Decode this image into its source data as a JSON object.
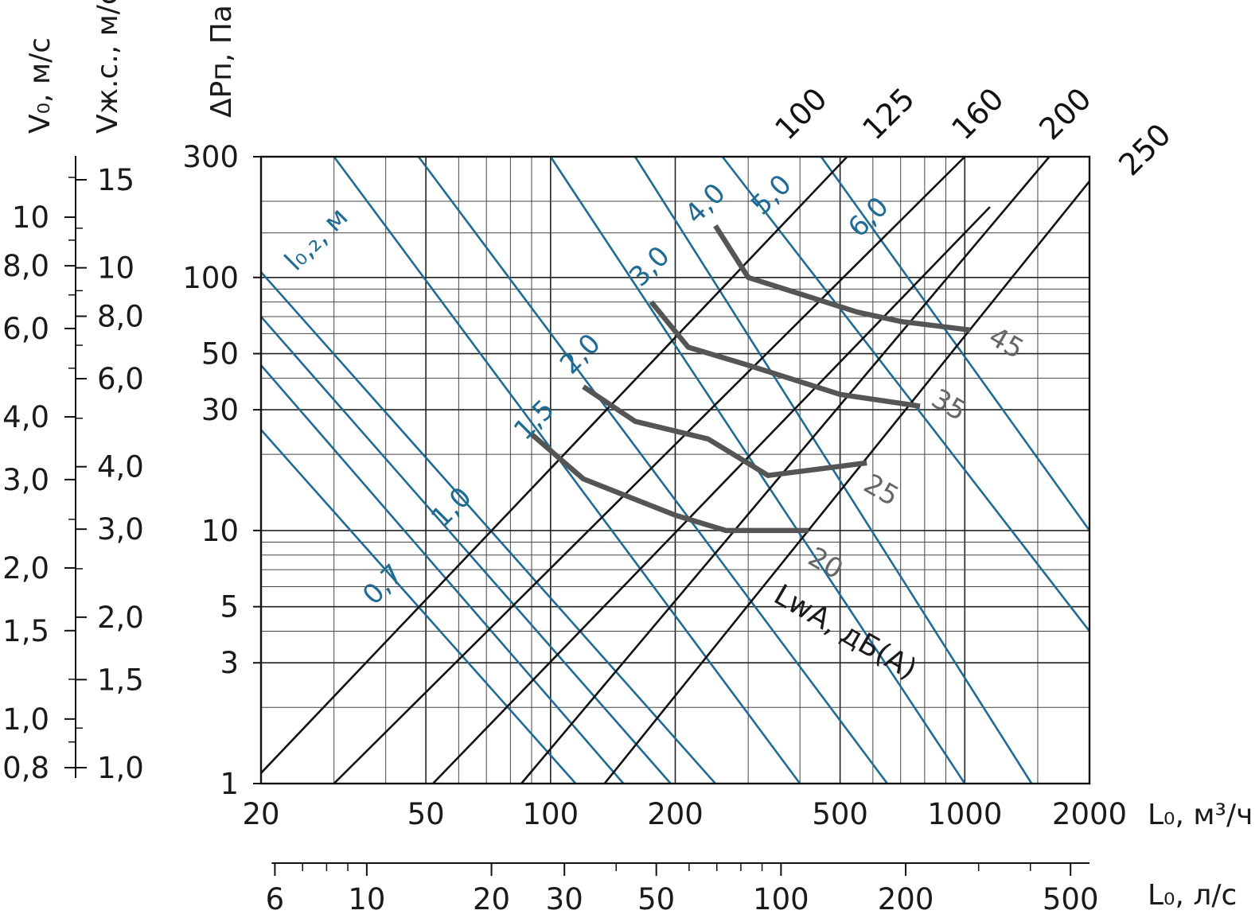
{
  "chart_data": {
    "type": "line",
    "title": "",
    "xlabel": "L₀, м³/ч",
    "ylabel": "ΔPп, Па",
    "xscale": "log",
    "yscale": "log",
    "xlim": [
      20,
      2000
    ],
    "ylim": [
      1,
      300
    ],
    "grid": true,
    "x_ticks": [
      "20",
      "50",
      "100",
      "200",
      "500",
      "1000",
      "2000"
    ],
    "y_ticks": [
      "300",
      "100",
      "50",
      "30",
      "10",
      "5",
      "3",
      "1"
    ],
    "x_ticks_minor": [
      30,
      40,
      60,
      70,
      80,
      90,
      300,
      400,
      600,
      700,
      800,
      900,
      1500
    ],
    "y_ticks_minor": [
      2,
      4,
      6,
      7,
      8,
      9,
      20,
      40,
      60,
      70,
      80,
      90,
      150,
      200
    ],
    "secondary_x_axis": {
      "label": "L₀, л/с",
      "ticks": [
        "6",
        "10",
        "20",
        "30",
        "50",
        "100",
        "200",
        "500"
      ],
      "tick_values": [
        6,
        10,
        20,
        30,
        50,
        100,
        200,
        500
      ],
      "minor_values": [
        7,
        8,
        9,
        40,
        60,
        70,
        80,
        90,
        300,
        400
      ]
    },
    "velocity_axes": [
      {
        "label": "V₀, м/с",
        "ticks": [
          "10",
          "8,0",
          "6,0",
          "4,0",
          "3,0",
          "2,0",
          "1,5",
          "1,0",
          "0,8"
        ],
        "tick_values": [
          10,
          8,
          6,
          4,
          3,
          2,
          1.5,
          1,
          0.8
        ],
        "minor_values": [
          12,
          9,
          7,
          5,
          2.5,
          1.2,
          0.9
        ]
      },
      {
        "label": "Vж.с., м/с",
        "ticks": [
          "15",
          "10",
          "8,0",
          "6,0",
          "4,0",
          "3,0",
          "2,0",
          "1,5",
          "1,0"
        ],
        "tick_values": [
          15,
          10,
          8,
          6,
          4,
          3,
          2,
          1.5,
          1
        ],
        "minor_values": [
          12,
          9,
          7,
          5,
          2.5,
          1.2
        ]
      }
    ],
    "diameter_series": [
      {
        "name": "100",
        "points": [
          [
            20,
            1.1
          ],
          [
            520,
            300
          ]
        ]
      },
      {
        "name": "125",
        "points": [
          [
            30,
            1
          ],
          [
            1000,
            300
          ]
        ]
      },
      {
        "name": "160",
        "points": [
          [
            52,
            1
          ],
          [
            1150,
            190
          ]
        ]
      },
      {
        "name": "200",
        "points": [
          [
            85,
            1
          ],
          [
            1600,
            300
          ]
        ]
      },
      {
        "name": "250",
        "points": [
          [
            135,
            1
          ],
          [
            2000,
            240
          ]
        ]
      }
    ],
    "throw_label": "l₀,₂, м",
    "throw_series": [
      {
        "name": "0,7",
        "points": [
          [
            20,
            25
          ],
          [
            115,
            1
          ]
        ]
      },
      {
        "name": "",
        "points": [
          [
            20,
            45
          ],
          [
            150,
            1
          ]
        ]
      },
      {
        "name": "1,0",
        "points": [
          [
            20,
            70
          ],
          [
            195,
            1
          ]
        ]
      },
      {
        "name": "1,5",
        "points": [
          [
            20,
            105
          ],
          [
            250,
            1
          ]
        ]
      },
      {
        "name": "2,0",
        "points": [
          [
            30,
            300
          ],
          [
            400,
            1
          ]
        ]
      },
      {
        "name": "3,0",
        "points": [
          [
            48,
            300
          ],
          [
            650,
            1
          ]
        ]
      },
      {
        "name": "4,0",
        "points": [
          [
            100,
            300
          ],
          [
            1000,
            1
          ]
        ]
      },
      {
        "name": "5,0",
        "points": [
          [
            160,
            300
          ],
          [
            1450,
            1
          ]
        ]
      },
      {
        "name": "6,0",
        "points": [
          [
            260,
            300
          ],
          [
            2000,
            4
          ]
        ]
      },
      {
        "name": "",
        "points": [
          [
            450,
            300
          ],
          [
            2000,
            10
          ]
        ]
      }
    ],
    "noise_label": "LwA, дБ(А)",
    "noise_series": [
      {
        "name": "20",
        "points": [
          [
            90,
            24
          ],
          [
            120,
            16
          ],
          [
            200,
            11.5
          ],
          [
            265,
            10
          ],
          [
            420,
            10
          ]
        ]
      },
      {
        "name": "25",
        "points": [
          [
            120,
            37
          ],
          [
            160,
            27
          ],
          [
            240,
            23
          ],
          [
            335,
            16.5
          ],
          [
            580,
            18.5
          ]
        ]
      },
      {
        "name": "35",
        "points": [
          [
            175,
            80
          ],
          [
            215,
            53
          ],
          [
            300,
            45
          ],
          [
            500,
            34.5
          ],
          [
            780,
            31
          ]
        ]
      },
      {
        "name": "45",
        "points": [
          [
            250,
            160
          ],
          [
            300,
            100
          ],
          [
            550,
            73
          ],
          [
            700,
            67
          ],
          [
            1030,
            62
          ]
        ]
      }
    ]
  }
}
